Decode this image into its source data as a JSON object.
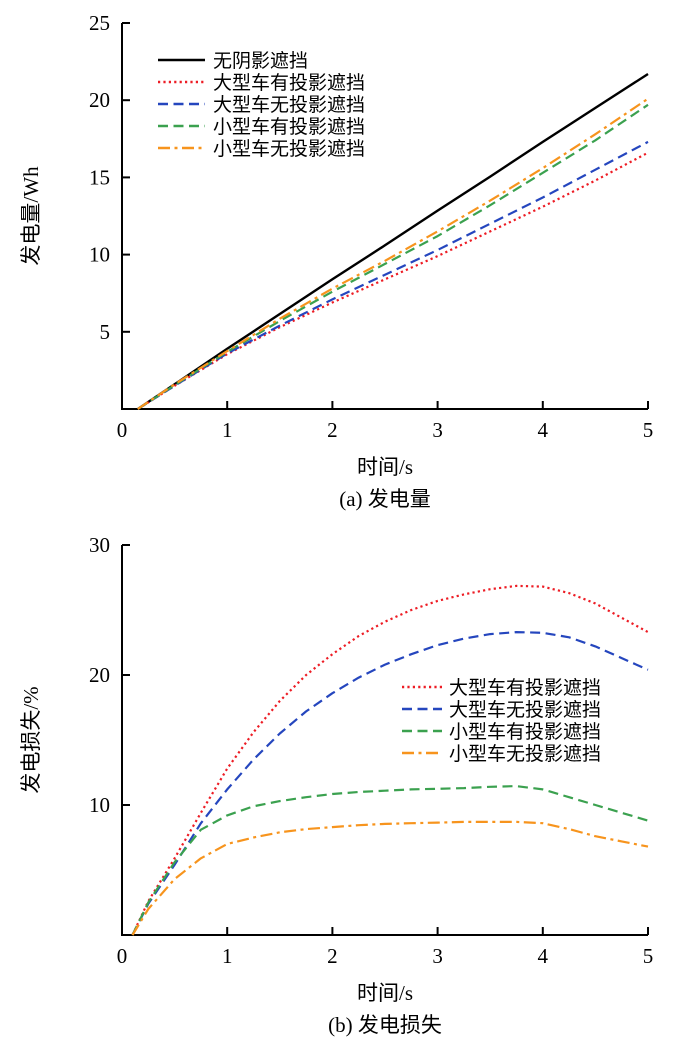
{
  "page": {
    "background": "#ffffff"
  },
  "chart_data": [
    {
      "type": "line",
      "caption": "(a)  发电量",
      "xlabel": "时间/s",
      "ylabel": "发电量/Wh",
      "xlim": [
        0,
        5
      ],
      "ylim": [
        0,
        25
      ],
      "x_ticks": [
        0,
        1,
        2,
        3,
        4,
        5
      ],
      "y_ticks": [
        5,
        10,
        15,
        20,
        25
      ],
      "grid": false,
      "legend_position": "upper-left",
      "x": [
        0.15,
        0.5,
        1,
        1.5,
        2,
        2.5,
        3,
        3.5,
        4,
        4.5,
        5
      ],
      "series": [
        {
          "id": "no-shading",
          "name": "无阴影遮挡",
          "color": "#000000",
          "line_style": "solid",
          "values": [
            0,
            1.6,
            3.9,
            6.15,
            8.4,
            10.6,
            12.85,
            15.05,
            17.3,
            19.5,
            21.7
          ]
        },
        {
          "id": "large-vehicle-with-shadow",
          "name": "大型车有投影遮挡",
          "color": "#ed1c24",
          "line_style": "dotted",
          "values": [
            0,
            1.5,
            3.55,
            5.3,
            6.9,
            8.4,
            9.9,
            11.5,
            13.1,
            14.8,
            16.6
          ]
        },
        {
          "id": "large-vehicle-no-shadow",
          "name": "大型车无投影遮挡",
          "color": "#2546be",
          "line_style": "dashed",
          "values": [
            0,
            1.5,
            3.6,
            5.4,
            7.1,
            8.7,
            10.3,
            12.0,
            13.7,
            15.5,
            17.3
          ]
        },
        {
          "id": "small-vehicle-with-shadow",
          "name": "小型车有投影遮挡",
          "color": "#3ba14f",
          "line_style": "dashed",
          "values": [
            0,
            1.55,
            3.7,
            5.7,
            7.6,
            9.4,
            11.2,
            13.2,
            15.3,
            17.4,
            19.7
          ]
        },
        {
          "id": "small-vehicle-no-shadow",
          "name": "小型车无投影遮挡",
          "color": "#f7941d",
          "line_style": "dash-dot",
          "values": [
            0,
            1.6,
            3.75,
            5.85,
            7.8,
            9.6,
            11.5,
            13.5,
            15.6,
            17.8,
            20.1
          ]
        }
      ]
    },
    {
      "type": "line",
      "caption": "(b)  发电损失",
      "xlabel": "时间/s",
      "ylabel": "发电损失/%",
      "xlim": [
        0,
        5
      ],
      "ylim": [
        0,
        30
      ],
      "x_ticks": [
        0,
        1,
        2,
        3,
        4,
        5
      ],
      "y_ticks": [
        10,
        20,
        30
      ],
      "grid": false,
      "legend_position": "middle-right",
      "x": [
        0.1,
        0.25,
        0.5,
        0.75,
        1,
        1.25,
        1.5,
        1.75,
        2,
        2.25,
        2.5,
        2.75,
        3,
        3.25,
        3.5,
        3.75,
        4,
        4.25,
        4.5,
        4.75,
        5
      ],
      "series": [
        {
          "id": "large-vehicle-with-shadow",
          "name": "大型车有投影遮挡",
          "color": "#ed1c24",
          "line_style": "dotted",
          "values": [
            0,
            2.6,
            5.9,
            9.4,
            12.8,
            15.6,
            18.0,
            20.0,
            21.6,
            23.0,
            24.1,
            25.0,
            25.7,
            26.2,
            26.6,
            26.85,
            26.8,
            26.3,
            25.5,
            24.4,
            23.3
          ]
        },
        {
          "id": "large-vehicle-no-shadow",
          "name": "大型车无投影遮挡",
          "color": "#2546be",
          "line_style": "dashed",
          "values": [
            0,
            2.4,
            5.4,
            8.6,
            11.2,
            13.5,
            15.5,
            17.2,
            18.6,
            19.8,
            20.8,
            21.6,
            22.3,
            22.8,
            23.15,
            23.3,
            23.25,
            22.9,
            22.2,
            21.3,
            20.4
          ]
        },
        {
          "id": "small-vehicle-with-shadow",
          "name": "小型车有投影遮挡",
          "color": "#3ba14f",
          "line_style": "dashed",
          "values": [
            0,
            2.5,
            5.6,
            8.1,
            9.2,
            9.9,
            10.3,
            10.6,
            10.85,
            11.0,
            11.1,
            11.2,
            11.25,
            11.3,
            11.4,
            11.45,
            11.2,
            10.6,
            10.0,
            9.4,
            8.8
          ]
        },
        {
          "id": "small-vehicle-no-shadow",
          "name": "小型车无投影遮挡",
          "color": "#f7941d",
          "line_style": "dash-dot",
          "values": [
            0,
            2.0,
            4.3,
            5.9,
            7.0,
            7.5,
            7.9,
            8.15,
            8.3,
            8.45,
            8.55,
            8.6,
            8.65,
            8.7,
            8.7,
            8.7,
            8.6,
            8.15,
            7.6,
            7.2,
            6.8
          ]
        }
      ]
    }
  ]
}
